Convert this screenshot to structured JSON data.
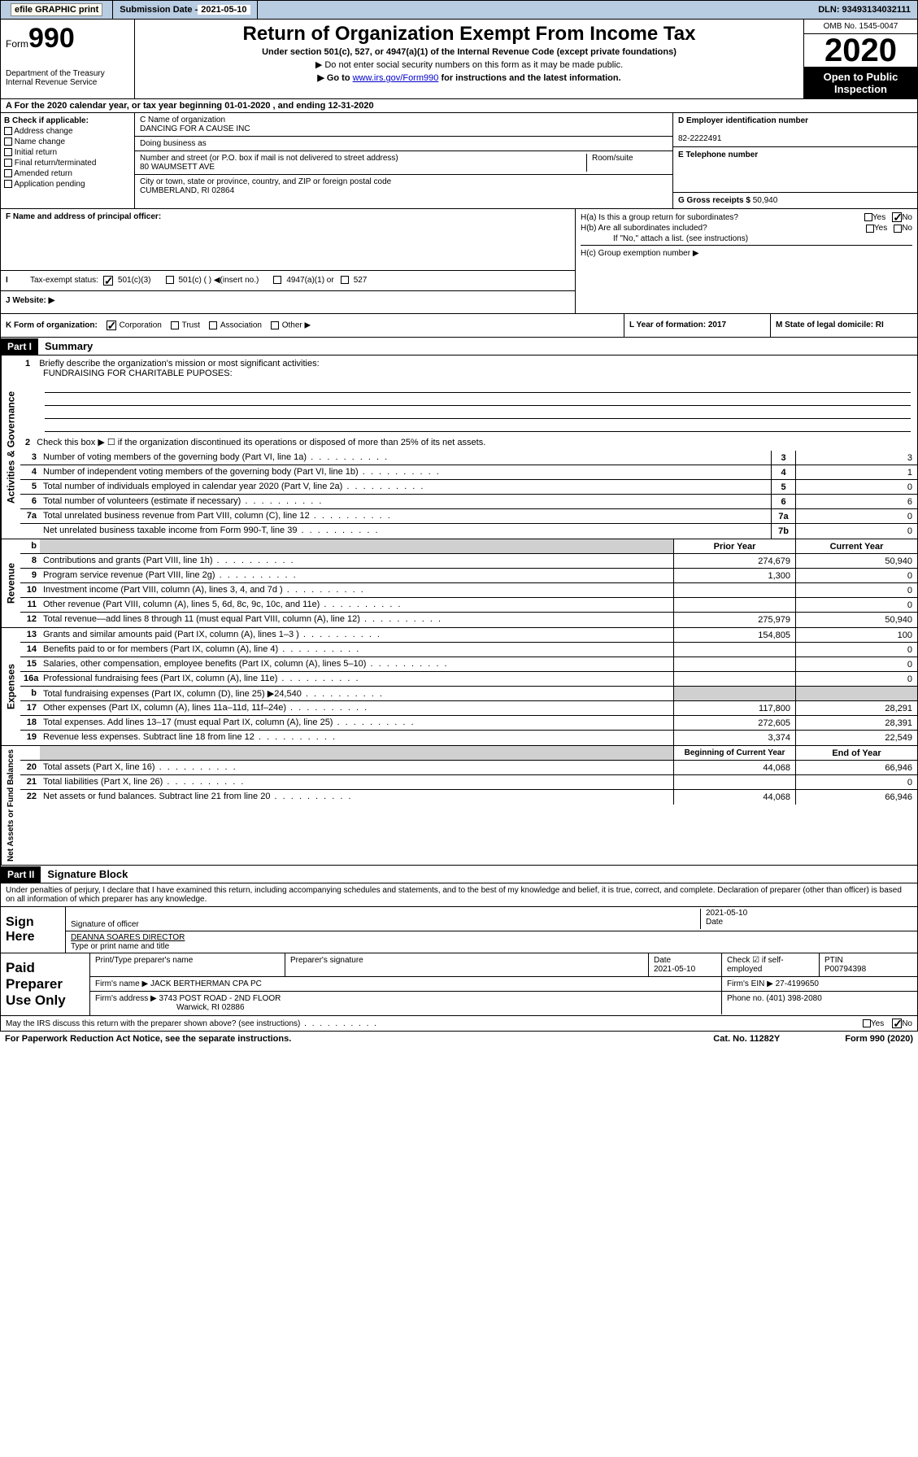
{
  "topbar": {
    "efile": "efile GRAPHIC print",
    "sub_label": "Submission Date - ",
    "sub_date": "2021-05-10",
    "dln": "DLN: 93493134032111"
  },
  "header": {
    "form_prefix": "Form",
    "form_num": "990",
    "dept": "Department of the Treasury\nInternal Revenue Service",
    "title": "Return of Organization Exempt From Income Tax",
    "subtitle": "Under section 501(c), 527, or 4947(a)(1) of the Internal Revenue Code (except private foundations)",
    "note1": "▶ Do not enter social security numbers on this form as it may be made public.",
    "note2_a": "▶ Go to ",
    "note2_link": "www.irs.gov/Form990",
    "note2_b": " for instructions and the latest information.",
    "omb": "OMB No. 1545-0047",
    "year": "2020",
    "open": "Open to Public\nInspection"
  },
  "line_a": "For the 2020 calendar year, or tax year beginning 01-01-2020    , and ending 12-31-2020",
  "col_b": {
    "label": "B Check if applicable:",
    "items": [
      "Address change",
      "Name change",
      "Initial return",
      "Final return/terminated",
      "Amended return",
      "Application pending"
    ]
  },
  "col_c": {
    "name_lbl": "C Name of organization",
    "name": "DANCING FOR A CAUSE INC",
    "dba_lbl": "Doing business as",
    "addr_lbl": "Number and street (or P.O. box if mail is not delivered to street address)",
    "room_lbl": "Room/suite",
    "addr": "80 WAUMSETT AVE",
    "city_lbl": "City or town, state or province, country, and ZIP or foreign postal code",
    "city": "CUMBERLAND, RI  02864"
  },
  "col_d": {
    "ein_lbl": "D Employer identification number",
    "ein": "82-2222491",
    "tel_lbl": "E Telephone number",
    "gross_lbl": "G Gross receipts $ ",
    "gross": "50,940"
  },
  "col_f": "F  Name and address of principal officer:",
  "col_h": {
    "ha": "H(a)  Is this a group return for subordinates?",
    "hb": "H(b)  Are all subordinates included?",
    "hb_note": "If \"No,\" attach a list. (see instructions)",
    "hc": "H(c)  Group exemption number ▶"
  },
  "row_i": {
    "label": "Tax-exempt status:",
    "o1": "501(c)(3)",
    "o2": "501(c) (  ) ◀(insert no.)",
    "o3": "4947(a)(1) or",
    "o4": "527"
  },
  "row_j": "Website: ▶",
  "row_k": "K Form of organization:",
  "row_k_opts": [
    "Corporation",
    "Trust",
    "Association",
    "Other ▶"
  ],
  "row_l": "L Year of formation: 2017",
  "row_m": "M State of legal domicile: RI",
  "part1": {
    "label": "Part I",
    "title": "Summary"
  },
  "mission": {
    "num": "1",
    "text": "Briefly describe the organization's mission or most significant activities:",
    "val": "FUNDRAISING FOR CHARITABLE PUPOSES:"
  },
  "line2": "Check this box ▶ ☐  if the organization discontinued its operations or disposed of more than 25% of its net assets.",
  "lines_gov": [
    {
      "n": "3",
      "t": "Number of voting members of the governing body (Part VI, line 1a)",
      "c": "3",
      "v": "3"
    },
    {
      "n": "4",
      "t": "Number of independent voting members of the governing body (Part VI, line 1b)",
      "c": "4",
      "v": "1"
    },
    {
      "n": "5",
      "t": "Total number of individuals employed in calendar year 2020 (Part V, line 2a)",
      "c": "5",
      "v": "0"
    },
    {
      "n": "6",
      "t": "Total number of volunteers (estimate if necessary)",
      "c": "6",
      "v": "6"
    },
    {
      "n": "7a",
      "t": "Total unrelated business revenue from Part VIII, column (C), line 12",
      "c": "7a",
      "v": "0"
    },
    {
      "n": "",
      "t": "Net unrelated business taxable income from Form 990-T, line 39",
      "c": "7b",
      "v": "0"
    }
  ],
  "rev_hdr": {
    "b": "b",
    "prior": "Prior Year",
    "curr": "Current Year"
  },
  "lines_rev": [
    {
      "n": "8",
      "t": "Contributions and grants (Part VIII, line 1h)",
      "p": "274,679",
      "c": "50,940"
    },
    {
      "n": "9",
      "t": "Program service revenue (Part VIII, line 2g)",
      "p": "1,300",
      "c": "0"
    },
    {
      "n": "10",
      "t": "Investment income (Part VIII, column (A), lines 3, 4, and 7d )",
      "p": "",
      "c": "0"
    },
    {
      "n": "11",
      "t": "Other revenue (Part VIII, column (A), lines 5, 6d, 8c, 9c, 10c, and 11e)",
      "p": "",
      "c": "0"
    },
    {
      "n": "12",
      "t": "Total revenue—add lines 8 through 11 (must equal Part VIII, column (A), line 12)",
      "p": "275,979",
      "c": "50,940"
    }
  ],
  "lines_exp": [
    {
      "n": "13",
      "t": "Grants and similar amounts paid (Part IX, column (A), lines 1–3 )",
      "p": "154,805",
      "c": "100"
    },
    {
      "n": "14",
      "t": "Benefits paid to or for members (Part IX, column (A), line 4)",
      "p": "",
      "c": "0"
    },
    {
      "n": "15",
      "t": "Salaries, other compensation, employee benefits (Part IX, column (A), lines 5–10)",
      "p": "",
      "c": "0"
    },
    {
      "n": "16a",
      "t": "Professional fundraising fees (Part IX, column (A), line 11e)",
      "p": "",
      "c": "0"
    },
    {
      "n": "b",
      "t": "Total fundraising expenses (Part IX, column (D), line 25) ▶24,540",
      "p": "grey",
      "c": "grey"
    },
    {
      "n": "17",
      "t": "Other expenses (Part IX, column (A), lines 11a–11d, 11f–24e)",
      "p": "117,800",
      "c": "28,291"
    },
    {
      "n": "18",
      "t": "Total expenses. Add lines 13–17 (must equal Part IX, column (A), line 25)",
      "p": "272,605",
      "c": "28,391"
    },
    {
      "n": "19",
      "t": "Revenue less expenses. Subtract line 18 from line 12",
      "p": "3,374",
      "c": "22,549"
    }
  ],
  "net_hdr": {
    "beg": "Beginning of Current Year",
    "end": "End of Year"
  },
  "lines_net": [
    {
      "n": "20",
      "t": "Total assets (Part X, line 16)",
      "p": "44,068",
      "c": "66,946"
    },
    {
      "n": "21",
      "t": "Total liabilities (Part X, line 26)",
      "p": "",
      "c": "0"
    },
    {
      "n": "22",
      "t": "Net assets or fund balances. Subtract line 21 from line 20",
      "p": "44,068",
      "c": "66,946"
    }
  ],
  "part2": {
    "label": "Part II",
    "title": "Signature Block"
  },
  "sig_decl": "Under penalties of perjury, I declare that I have examined this return, including accompanying schedules and statements, and to the best of my knowledge and belief, it is true, correct, and complete. Declaration of preparer (other than officer) is based on all information of which preparer has any knowledge.",
  "sign_here": "Sign Here",
  "sig_officer": "Signature of officer",
  "sig_date": "2021-05-10",
  "sig_date_lbl": "Date",
  "sig_name": "DEANNA SOARES  DIRECTOR",
  "sig_name_lbl": "Type or print name and title",
  "prep": {
    "label": "Paid Preparer Use Only",
    "name_lbl": "Print/Type preparer's name",
    "sig_lbl": "Preparer's signature",
    "date_lbl": "Date",
    "date": "2021-05-10",
    "check_lbl": "Check ☑ if self-employed",
    "ptin_lbl": "PTIN",
    "ptin": "P00794398",
    "firm_lbl": "Firm's name    ▶",
    "firm": "JACK BERTHERMAN CPA PC",
    "ein_lbl": "Firm's EIN ▶",
    "ein": "27-4199650",
    "addr_lbl": "Firm's address ▶",
    "addr1": "3743 POST ROAD - 2ND FLOOR",
    "addr2": "Warwick, RI  02886",
    "phone_lbl": "Phone no.",
    "phone": "(401) 398-2080"
  },
  "footer": {
    "q": "May the IRS discuss this return with the preparer shown above? (see instructions)",
    "yes": "Yes",
    "no": "No"
  },
  "bottom": {
    "notice": "For Paperwork Reduction Act Notice, see the separate instructions.",
    "cat": "Cat. No. 11282Y",
    "form": "Form 990 (2020)"
  },
  "yes": "Yes",
  "no": "No",
  "vert": {
    "gov": "Activities & Governance",
    "rev": "Revenue",
    "exp": "Expenses",
    "net": "Net Assets or Fund Balances"
  }
}
